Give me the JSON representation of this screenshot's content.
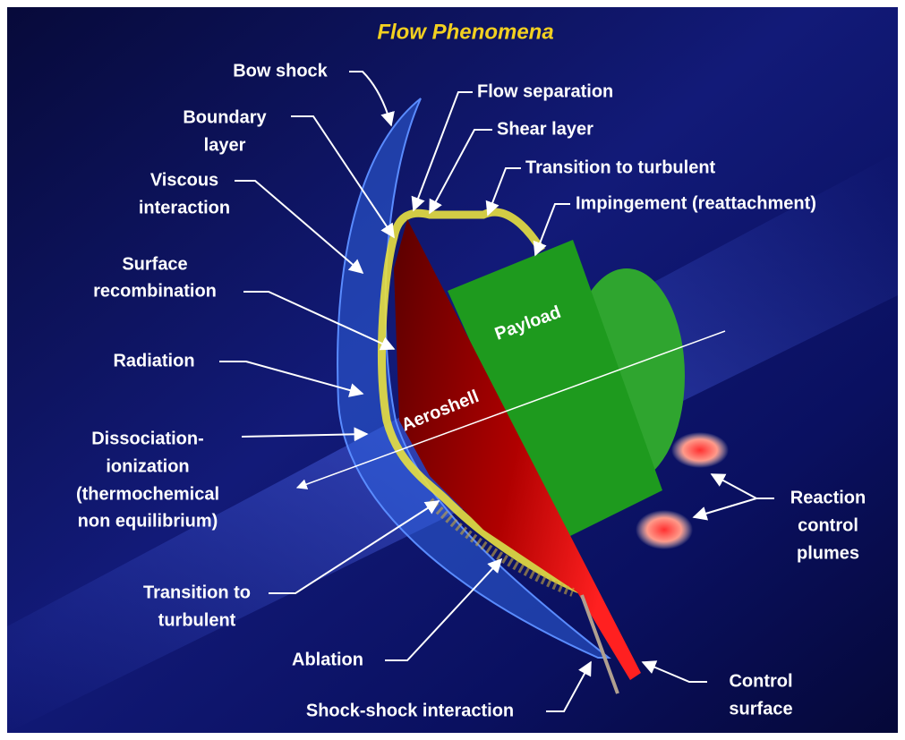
{
  "title": "Flow Phenomena",
  "labels": {
    "bow_shock": [
      "Bow shock"
    ],
    "flow_separation": [
      "Flow separation"
    ],
    "boundary_layer": [
      "Boundary",
      "layer"
    ],
    "shear_layer": [
      "Shear layer"
    ],
    "transition_upper": [
      "Transition to turbulent"
    ],
    "viscous": [
      "Viscous",
      "interaction"
    ],
    "impingement": [
      "Impingement (reattachment)"
    ],
    "surface_recombination": [
      "Surface",
      "recombination"
    ],
    "payload": [
      "Payload"
    ],
    "radiation": [
      "Radiation"
    ],
    "aeroshell": [
      "Aeroshell"
    ],
    "dissociation": [
      "Dissociation-",
      "ionization",
      "(thermochemical",
      "non equilibrium)"
    ],
    "reaction": [
      "Reaction",
      "control",
      "plumes"
    ],
    "transition_lower": [
      "Transition to",
      "turbulent"
    ],
    "ablation": [
      "Ablation"
    ],
    "control_surface": [
      "Control",
      "surface"
    ],
    "shock_shock": [
      "Shock-shock interaction"
    ]
  }
}
